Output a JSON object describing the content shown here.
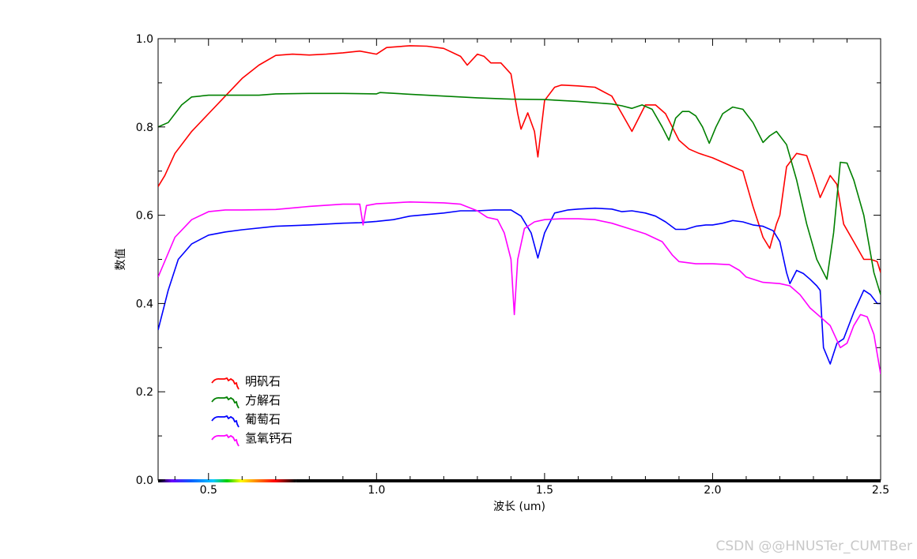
{
  "chart_data": {
    "type": "line",
    "xlabel": "波长 (um)",
    "ylabel": "数值",
    "xlim": [
      0.35,
      2.5
    ],
    "ylim": [
      0.0,
      1.0
    ],
    "x_ticks": [
      "0.5",
      "1.0",
      "1.5",
      "2.0",
      "2.5"
    ],
    "y_ticks": [
      "0.0",
      "0.2",
      "0.4",
      "0.6",
      "0.8",
      "1.0"
    ],
    "grid": false,
    "legend_position": "bottom-left",
    "series": [
      {
        "name": "明矾石",
        "color": "#ff0000",
        "points": [
          [
            0.35,
            0.665
          ],
          [
            0.37,
            0.69
          ],
          [
            0.4,
            0.74
          ],
          [
            0.45,
            0.79
          ],
          [
            0.5,
            0.83
          ],
          [
            0.55,
            0.87
          ],
          [
            0.6,
            0.91
          ],
          [
            0.65,
            0.94
          ],
          [
            0.7,
            0.962
          ],
          [
            0.75,
            0.965
          ],
          [
            0.8,
            0.963
          ],
          [
            0.85,
            0.965
          ],
          [
            0.9,
            0.968
          ],
          [
            0.95,
            0.972
          ],
          [
            1.0,
            0.965
          ],
          [
            1.03,
            0.98
          ],
          [
            1.1,
            0.984
          ],
          [
            1.15,
            0.983
          ],
          [
            1.2,
            0.978
          ],
          [
            1.25,
            0.96
          ],
          [
            1.27,
            0.94
          ],
          [
            1.3,
            0.965
          ],
          [
            1.32,
            0.96
          ],
          [
            1.34,
            0.945
          ],
          [
            1.37,
            0.945
          ],
          [
            1.4,
            0.92
          ],
          [
            1.42,
            0.83
          ],
          [
            1.43,
            0.795
          ],
          [
            1.45,
            0.832
          ],
          [
            1.47,
            0.79
          ],
          [
            1.48,
            0.732
          ],
          [
            1.5,
            0.86
          ],
          [
            1.53,
            0.89
          ],
          [
            1.55,
            0.895
          ],
          [
            1.6,
            0.893
          ],
          [
            1.65,
            0.89
          ],
          [
            1.7,
            0.87
          ],
          [
            1.73,
            0.83
          ],
          [
            1.76,
            0.79
          ],
          [
            1.78,
            0.82
          ],
          [
            1.8,
            0.85
          ],
          [
            1.83,
            0.85
          ],
          [
            1.86,
            0.83
          ],
          [
            1.9,
            0.77
          ],
          [
            1.93,
            0.75
          ],
          [
            1.96,
            0.74
          ],
          [
            2.0,
            0.73
          ],
          [
            2.03,
            0.72
          ],
          [
            2.06,
            0.71
          ],
          [
            2.09,
            0.7
          ],
          [
            2.12,
            0.62
          ],
          [
            2.15,
            0.55
          ],
          [
            2.17,
            0.525
          ],
          [
            2.19,
            0.58
          ],
          [
            2.2,
            0.6
          ],
          [
            2.22,
            0.71
          ],
          [
            2.25,
            0.74
          ],
          [
            2.28,
            0.735
          ],
          [
            2.3,
            0.69
          ],
          [
            2.32,
            0.64
          ],
          [
            2.35,
            0.69
          ],
          [
            2.37,
            0.67
          ],
          [
            2.39,
            0.58
          ],
          [
            2.42,
            0.54
          ],
          [
            2.45,
            0.5
          ],
          [
            2.47,
            0.5
          ],
          [
            2.49,
            0.495
          ],
          [
            2.5,
            0.47
          ]
        ]
      },
      {
        "name": "方解石",
        "color": "#008000",
        "points": [
          [
            0.35,
            0.8
          ],
          [
            0.38,
            0.81
          ],
          [
            0.42,
            0.85
          ],
          [
            0.45,
            0.868
          ],
          [
            0.5,
            0.872
          ],
          [
            0.55,
            0.872
          ],
          [
            0.6,
            0.872
          ],
          [
            0.65,
            0.872
          ],
          [
            0.7,
            0.875
          ],
          [
            0.8,
            0.876
          ],
          [
            0.9,
            0.876
          ],
          [
            1.0,
            0.875
          ],
          [
            1.01,
            0.878
          ],
          [
            1.1,
            0.874
          ],
          [
            1.2,
            0.87
          ],
          [
            1.3,
            0.866
          ],
          [
            1.4,
            0.863
          ],
          [
            1.5,
            0.862
          ],
          [
            1.55,
            0.86
          ],
          [
            1.6,
            0.858
          ],
          [
            1.65,
            0.855
          ],
          [
            1.7,
            0.852
          ],
          [
            1.73,
            0.848
          ],
          [
            1.76,
            0.842
          ],
          [
            1.79,
            0.85
          ],
          [
            1.82,
            0.84
          ],
          [
            1.85,
            0.8
          ],
          [
            1.87,
            0.77
          ],
          [
            1.89,
            0.82
          ],
          [
            1.91,
            0.835
          ],
          [
            1.93,
            0.835
          ],
          [
            1.95,
            0.825
          ],
          [
            1.97,
            0.8
          ],
          [
            1.99,
            0.763
          ],
          [
            2.01,
            0.8
          ],
          [
            2.03,
            0.83
          ],
          [
            2.06,
            0.845
          ],
          [
            2.09,
            0.84
          ],
          [
            2.12,
            0.81
          ],
          [
            2.15,
            0.765
          ],
          [
            2.17,
            0.78
          ],
          [
            2.19,
            0.79
          ],
          [
            2.22,
            0.76
          ],
          [
            2.25,
            0.68
          ],
          [
            2.28,
            0.58
          ],
          [
            2.31,
            0.5
          ],
          [
            2.34,
            0.455
          ],
          [
            2.36,
            0.56
          ],
          [
            2.38,
            0.72
          ],
          [
            2.4,
            0.718
          ],
          [
            2.42,
            0.68
          ],
          [
            2.45,
            0.6
          ],
          [
            2.48,
            0.47
          ],
          [
            2.5,
            0.42
          ]
        ]
      },
      {
        "name": "葡萄石",
        "color": "#0000ff",
        "points": [
          [
            0.35,
            0.34
          ],
          [
            0.38,
            0.43
          ],
          [
            0.41,
            0.5
          ],
          [
            0.45,
            0.535
          ],
          [
            0.5,
            0.555
          ],
          [
            0.55,
            0.562
          ],
          [
            0.6,
            0.567
          ],
          [
            0.7,
            0.575
          ],
          [
            0.8,
            0.578
          ],
          [
            0.9,
            0.582
          ],
          [
            0.95,
            0.583
          ],
          [
            1.0,
            0.586
          ],
          [
            1.05,
            0.59
          ],
          [
            1.1,
            0.598
          ],
          [
            1.2,
            0.605
          ],
          [
            1.25,
            0.61
          ],
          [
            1.3,
            0.61
          ],
          [
            1.35,
            0.612
          ],
          [
            1.4,
            0.612
          ],
          [
            1.43,
            0.598
          ],
          [
            1.46,
            0.56
          ],
          [
            1.48,
            0.503
          ],
          [
            1.5,
            0.56
          ],
          [
            1.53,
            0.605
          ],
          [
            1.57,
            0.612
          ],
          [
            1.6,
            0.614
          ],
          [
            1.65,
            0.616
          ],
          [
            1.7,
            0.614
          ],
          [
            1.73,
            0.608
          ],
          [
            1.76,
            0.61
          ],
          [
            1.8,
            0.605
          ],
          [
            1.83,
            0.598
          ],
          [
            1.86,
            0.585
          ],
          [
            1.89,
            0.568
          ],
          [
            1.92,
            0.568
          ],
          [
            1.95,
            0.575
          ],
          [
            1.98,
            0.578
          ],
          [
            2.0,
            0.578
          ],
          [
            2.03,
            0.582
          ],
          [
            2.06,
            0.588
          ],
          [
            2.09,
            0.585
          ],
          [
            2.12,
            0.578
          ],
          [
            2.15,
            0.575
          ],
          [
            2.18,
            0.565
          ],
          [
            2.2,
            0.54
          ],
          [
            2.22,
            0.47
          ],
          [
            2.23,
            0.445
          ],
          [
            2.25,
            0.475
          ],
          [
            2.27,
            0.468
          ],
          [
            2.29,
            0.455
          ],
          [
            2.31,
            0.44
          ],
          [
            2.32,
            0.43
          ],
          [
            2.33,
            0.3
          ],
          [
            2.35,
            0.263
          ],
          [
            2.37,
            0.31
          ],
          [
            2.39,
            0.32
          ],
          [
            2.42,
            0.38
          ],
          [
            2.45,
            0.43
          ],
          [
            2.47,
            0.42
          ],
          [
            2.49,
            0.4
          ],
          [
            2.5,
            0.4
          ]
        ]
      },
      {
        "name": "氢氧钙石",
        "color": "#ff00ff",
        "points": [
          [
            0.35,
            0.46
          ],
          [
            0.4,
            0.55
          ],
          [
            0.45,
            0.59
          ],
          [
            0.5,
            0.608
          ],
          [
            0.55,
            0.612
          ],
          [
            0.6,
            0.612
          ],
          [
            0.7,
            0.613
          ],
          [
            0.73,
            0.615
          ],
          [
            0.8,
            0.62
          ],
          [
            0.9,
            0.625
          ],
          [
            0.95,
            0.625
          ],
          [
            0.96,
            0.578
          ],
          [
            0.97,
            0.622
          ],
          [
            1.0,
            0.626
          ],
          [
            1.05,
            0.628
          ],
          [
            1.1,
            0.63
          ],
          [
            1.2,
            0.628
          ],
          [
            1.25,
            0.625
          ],
          [
            1.3,
            0.61
          ],
          [
            1.33,
            0.595
          ],
          [
            1.36,
            0.59
          ],
          [
            1.38,
            0.56
          ],
          [
            1.4,
            0.5
          ],
          [
            1.41,
            0.375
          ],
          [
            1.42,
            0.5
          ],
          [
            1.44,
            0.57
          ],
          [
            1.47,
            0.585
          ],
          [
            1.5,
            0.59
          ],
          [
            1.55,
            0.592
          ],
          [
            1.6,
            0.592
          ],
          [
            1.65,
            0.59
          ],
          [
            1.7,
            0.582
          ],
          [
            1.75,
            0.57
          ],
          [
            1.8,
            0.558
          ],
          [
            1.85,
            0.54
          ],
          [
            1.88,
            0.51
          ],
          [
            1.9,
            0.495
          ],
          [
            1.95,
            0.49
          ],
          [
            2.0,
            0.49
          ],
          [
            2.05,
            0.488
          ],
          [
            2.08,
            0.475
          ],
          [
            2.1,
            0.46
          ],
          [
            2.15,
            0.448
          ],
          [
            2.2,
            0.445
          ],
          [
            2.23,
            0.44
          ],
          [
            2.26,
            0.42
          ],
          [
            2.29,
            0.39
          ],
          [
            2.32,
            0.37
          ],
          [
            2.35,
            0.35
          ],
          [
            2.38,
            0.3
          ],
          [
            2.4,
            0.31
          ],
          [
            2.42,
            0.35
          ],
          [
            2.44,
            0.375
          ],
          [
            2.46,
            0.37
          ],
          [
            2.48,
            0.33
          ],
          [
            2.5,
            0.24
          ]
        ]
      }
    ]
  },
  "watermark": "CSDN @@HNUSTer_CUMTBer"
}
